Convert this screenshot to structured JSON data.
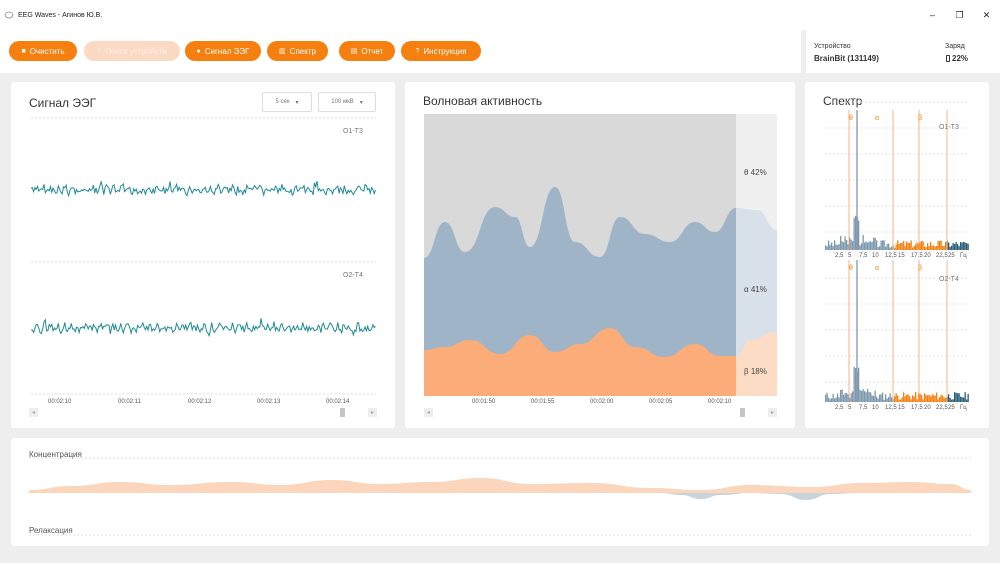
{
  "window": {
    "title": "EEG Waves - Агинов Ю.В.",
    "minimize": "–",
    "maximize": "❐",
    "close": "✕"
  },
  "toolbar": {
    "clear": "Очистить",
    "search_devices": "Поиск устройств",
    "eeg_signal": "Сигнал ЭЭГ",
    "spectrum": "Спектр",
    "report": "Отчет",
    "instruction": "Инструкция"
  },
  "device": {
    "device_label": "Устройство",
    "device_name": "BrainBit (131149)",
    "charge_label": "Заряд",
    "charge_value": "22%"
  },
  "eeg": {
    "title": "Сигнал ЭЭГ",
    "time_select": "5 сек",
    "amp_select": "100 мкВ",
    "channels": [
      "O1-T3",
      "O2-T4"
    ],
    "ticks": [
      "00:02:10",
      "00:02:11",
      "00:02:12",
      "00:02:13",
      "00:02:14"
    ]
  },
  "waves": {
    "title": "Волновая активность",
    "ticks": [
      "00:01:50",
      "00:01:55",
      "00:02:00",
      "00:02:05",
      "00:02:10"
    ],
    "theta": "θ 42%",
    "alpha": "α 41%",
    "beta": "β 18%"
  },
  "spectrum": {
    "title": "Спектр",
    "channels": [
      "O1-T3",
      "O2-T4"
    ],
    "bands": [
      "θ",
      "α",
      "β"
    ],
    "ticks": [
      "2,5",
      "5",
      "7,5",
      "10",
      "12,5",
      "15",
      "17,5",
      "20",
      "22,5",
      "25",
      "Гц"
    ]
  },
  "bottom": {
    "concentration": "Концентрация",
    "relaxation": "Релаксация"
  },
  "colors": {
    "accent": "#f5800f",
    "eeg_line": "#1f8a96",
    "theta_area": "#d9d9d9",
    "alpha_area": "#9fb4c7",
    "beta_area": "#fbac78"
  }
}
